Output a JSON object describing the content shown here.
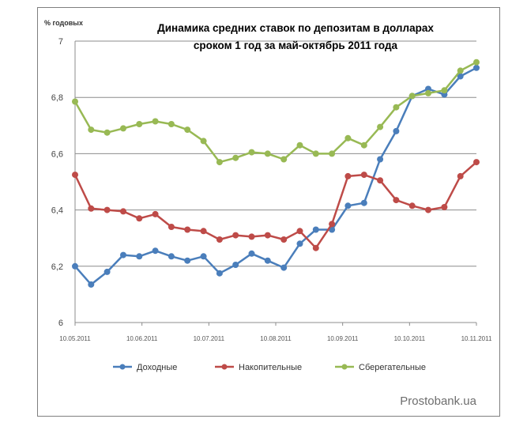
{
  "chart_data": {
    "type": "line",
    "title_lines": [
      "Динамика средних ставок по депозитам в долларах",
      "сроком 1 год за май-октябрь 2011 года"
    ],
    "ylabel": "% годовых",
    "xlabel": "",
    "ylim": [
      6,
      7
    ],
    "yticks": [
      "6",
      "6,2",
      "6,4",
      "6,6",
      "6,8",
      "7"
    ],
    "xticks": [
      "10.05.2011",
      "10.06.2011",
      "10.07.2011",
      "10.08.2011",
      "10.09.2011",
      "10.10.2011",
      "10.11.2011"
    ],
    "grid": "horizontal",
    "legend_position": "bottom",
    "series": [
      {
        "name": "Доходные",
        "color": "#4a7ebb",
        "values": [
          6.2,
          6.135,
          6.18,
          6.24,
          6.235,
          6.255,
          6.235,
          6.22,
          6.235,
          6.175,
          6.205,
          6.245,
          6.22,
          6.195,
          6.28,
          6.33,
          6.33,
          6.415,
          6.425,
          6.58,
          6.68,
          6.805,
          6.83,
          6.81,
          6.875,
          6.905
        ]
      },
      {
        "name": "Накопительные",
        "color": "#be4b48",
        "values": [
          6.525,
          6.405,
          6.4,
          6.395,
          6.37,
          6.385,
          6.34,
          6.33,
          6.325,
          6.295,
          6.31,
          6.305,
          6.31,
          6.295,
          6.325,
          6.265,
          6.35,
          6.52,
          6.525,
          6.505,
          6.435,
          6.415,
          6.4,
          6.41,
          6.52,
          6.57
        ]
      },
      {
        "name": "Сберегательные",
        "color": "#98b954",
        "values": [
          6.785,
          6.685,
          6.675,
          6.69,
          6.705,
          6.715,
          6.705,
          6.685,
          6.645,
          6.57,
          6.585,
          6.605,
          6.6,
          6.58,
          6.63,
          6.6,
          6.6,
          6.655,
          6.63,
          6.695,
          6.765,
          6.805,
          6.815,
          6.825,
          6.895,
          6.925
        ]
      }
    ]
  },
  "watermark": "Prostobank.ua"
}
